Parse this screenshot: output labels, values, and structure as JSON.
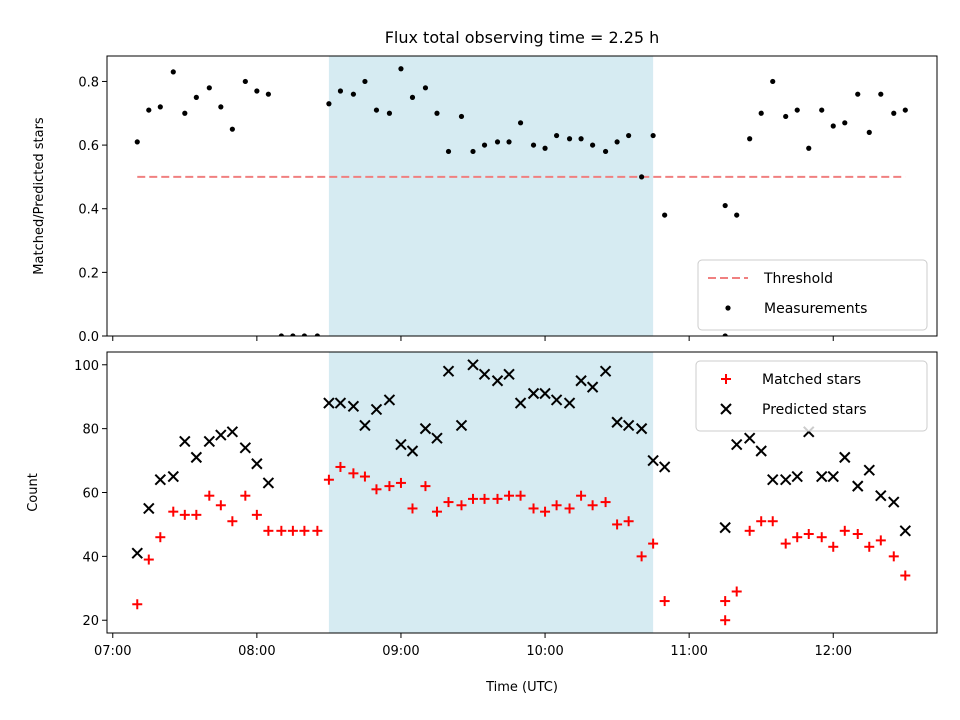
{
  "chart_data": [
    {
      "type": "scatter",
      "title": "Flux total observing time = 2.25 h",
      "xlabel": "",
      "ylabel": "Matched/Predicted stars",
      "ylim": [
        0,
        0.88
      ],
      "yticks": [
        0.0,
        0.2,
        0.4,
        0.6,
        0.8
      ],
      "yticklabels": [
        "0.0",
        "0.2",
        "0.4",
        "0.6",
        "0.8"
      ],
      "x_axis": "time",
      "xlim_hours": [
        6.96,
        12.72
      ],
      "shaded_interval_hours": [
        8.5,
        10.75
      ],
      "threshold": {
        "name": "Threshold",
        "y": 0.5,
        "x_start": 7.17,
        "x_end": 12.5,
        "color": "#f08080",
        "style": "dashed"
      },
      "legend_position": "lower right",
      "series": [
        {
          "name": "Measurements",
          "color": "#000000",
          "marker": "dot",
          "x": [
            7.17,
            7.25,
            7.33,
            7.42,
            7.5,
            7.58,
            7.67,
            7.75,
            7.83,
            7.92,
            8.0,
            8.08,
            8.17,
            8.25,
            8.33,
            8.42,
            8.5,
            8.58,
            8.67,
            8.75,
            8.83,
            8.92,
            9.0,
            9.08,
            9.17,
            9.25,
            9.33,
            9.42,
            9.5,
            9.58,
            9.67,
            9.75,
            9.83,
            9.92,
            10.0,
            10.08,
            10.17,
            10.25,
            10.33,
            10.42,
            10.5,
            10.58,
            10.67,
            10.75,
            10.83,
            11.25,
            11.25,
            11.33,
            11.42,
            11.5,
            11.58,
            11.67,
            11.75,
            11.83,
            11.92,
            12.0,
            12.08,
            12.17,
            12.25,
            12.33,
            12.42,
            12.5
          ],
          "y": [
            0.61,
            0.71,
            0.72,
            0.83,
            0.7,
            0.75,
            0.78,
            0.72,
            0.65,
            0.8,
            0.77,
            0.76,
            0.0,
            0.0,
            0.0,
            0.0,
            0.73,
            0.77,
            0.76,
            0.8,
            0.71,
            0.7,
            0.84,
            0.75,
            0.78,
            0.7,
            0.58,
            0.69,
            0.58,
            0.6,
            0.61,
            0.61,
            0.67,
            0.6,
            0.59,
            0.63,
            0.62,
            0.62,
            0.6,
            0.58,
            0.61,
            0.63,
            0.5,
            0.63,
            0.38,
            0.0,
            0.41,
            0.38,
            0.62,
            0.7,
            0.8,
            0.69,
            0.71,
            0.59,
            0.71,
            0.66,
            0.67,
            0.76,
            0.64,
            0.76,
            0.7,
            0.71
          ]
        }
      ]
    },
    {
      "type": "scatter",
      "title": "",
      "xlabel": "Time (UTC)",
      "ylabel": "Count",
      "ylim": [
        16,
        104
      ],
      "yticks": [
        20,
        40,
        60,
        80,
        100
      ],
      "yticklabels": [
        "20",
        "40",
        "60",
        "80",
        "100"
      ],
      "x_axis": "time",
      "xlim_hours": [
        6.96,
        12.72
      ],
      "xticks_hours": [
        7,
        8,
        9,
        10,
        11,
        12
      ],
      "xticklabels": [
        "07:00",
        "08:00",
        "09:00",
        "10:00",
        "11:00",
        "12:00"
      ],
      "shaded_interval_hours": [
        8.5,
        10.75
      ],
      "legend_position": "upper right",
      "series": [
        {
          "name": "Matched stars",
          "color": "#ff0000",
          "marker": "plus",
          "x": [
            7.17,
            7.25,
            7.33,
            7.42,
            7.5,
            7.58,
            7.67,
            7.75,
            7.83,
            7.92,
            8.0,
            8.08,
            8.17,
            8.25,
            8.33,
            8.42,
            8.5,
            8.58,
            8.67,
            8.75,
            8.83,
            8.92,
            9.0,
            9.08,
            9.17,
            9.25,
            9.33,
            9.42,
            9.5,
            9.58,
            9.67,
            9.75,
            9.83,
            9.92,
            10.0,
            10.08,
            10.17,
            10.25,
            10.33,
            10.42,
            10.5,
            10.58,
            10.67,
            10.75,
            10.83,
            11.25,
            11.25,
            11.33,
            11.42,
            11.5,
            11.58,
            11.67,
            11.75,
            11.83,
            11.92,
            12.0,
            12.08,
            12.17,
            12.25,
            12.33,
            12.42,
            12.5
          ],
          "y": [
            25,
            39,
            46,
            54,
            53,
            53,
            59,
            56,
            51,
            59,
            53,
            48,
            48,
            48,
            48,
            48,
            64,
            68,
            66,
            65,
            61,
            62,
            63,
            55,
            62,
            54,
            57,
            56,
            58,
            58,
            58,
            59,
            59,
            55,
            54,
            56,
            55,
            59,
            56,
            57,
            50,
            51,
            40,
            44,
            26,
            26,
            20,
            29,
            48,
            51,
            51,
            44,
            46,
            47,
            46,
            43,
            48,
            47,
            43,
            45,
            40,
            34
          ]
        },
        {
          "name": "Predicted stars",
          "color": "#000000",
          "marker": "x",
          "x": [
            7.17,
            7.25,
            7.33,
            7.42,
            7.5,
            7.58,
            7.67,
            7.75,
            7.83,
            7.92,
            8.0,
            8.08,
            8.5,
            8.58,
            8.67,
            8.75,
            8.83,
            8.92,
            9.0,
            9.08,
            9.17,
            9.25,
            9.33,
            9.42,
            9.5,
            9.58,
            9.67,
            9.75,
            9.83,
            9.92,
            10.0,
            10.08,
            10.17,
            10.25,
            10.33,
            10.42,
            10.5,
            10.58,
            10.67,
            10.75,
            10.83,
            11.25,
            11.33,
            11.42,
            11.5,
            11.58,
            11.67,
            11.75,
            11.83,
            11.92,
            12.0,
            12.08,
            12.17,
            12.25,
            12.33,
            12.42,
            12.5
          ],
          "y": [
            41,
            55,
            64,
            65,
            76,
            71,
            76,
            78,
            79,
            74,
            69,
            63,
            88,
            88,
            87,
            81,
            86,
            89,
            75,
            73,
            80,
            77,
            98,
            81,
            100,
            97,
            95,
            97,
            88,
            91,
            91,
            89,
            88,
            95,
            93,
            98,
            82,
            81,
            80,
            70,
            68,
            49,
            75,
            77,
            73,
            64,
            64,
            65,
            79,
            65,
            65,
            71,
            62,
            67,
            59,
            57,
            48
          ]
        }
      ]
    }
  ]
}
